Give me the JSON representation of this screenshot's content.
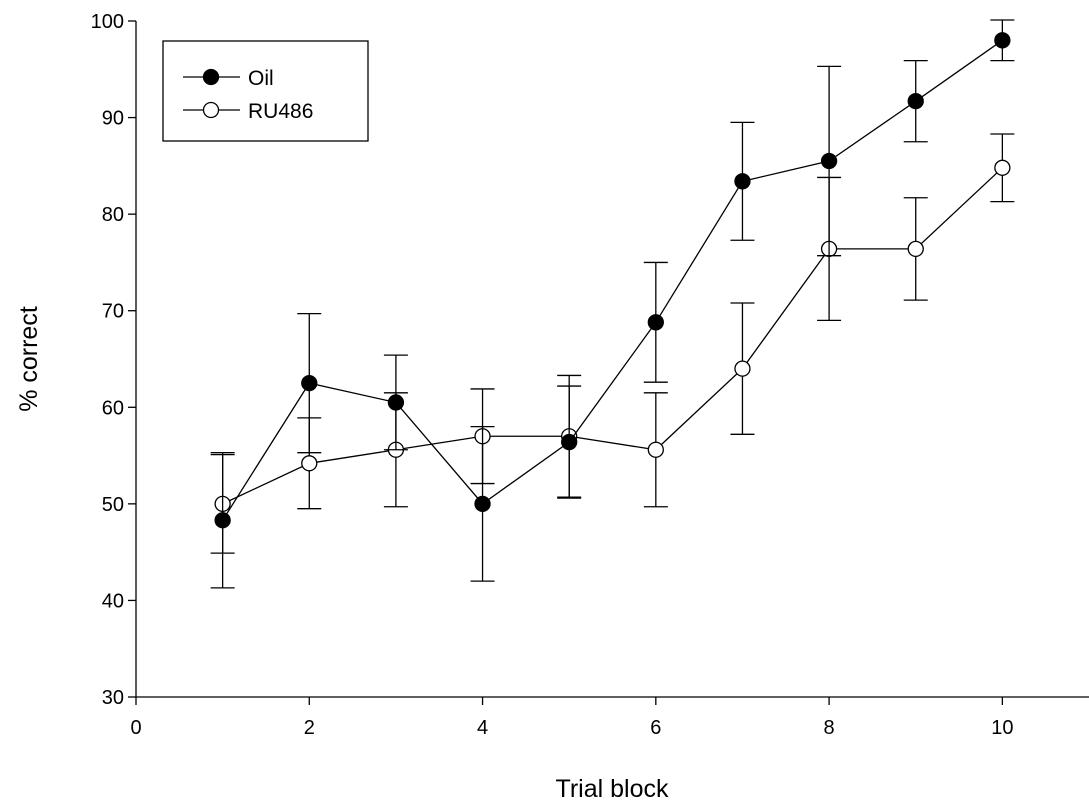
{
  "chart_data": {
    "type": "line",
    "title": "",
    "xlabel": "Trial block",
    "ylabel": "% correct",
    "xlim": [
      0,
      11
    ],
    "ylim": [
      30,
      100
    ],
    "xticks": [
      0,
      2,
      4,
      6,
      8,
      10
    ],
    "yticks": [
      30,
      40,
      50,
      60,
      70,
      80,
      90,
      100
    ],
    "grid": false,
    "legend_position": "top-left",
    "error_bars": true,
    "series": [
      {
        "name": "Oil",
        "marker": "filled-circle",
        "color": "#000000",
        "x": [
          1,
          2,
          3,
          4,
          5,
          6,
          7,
          8,
          9,
          10
        ],
        "y": [
          48.3,
          62.5,
          60.5,
          50.0,
          56.4,
          68.8,
          83.4,
          85.5,
          91.7,
          98.0
        ],
        "err": [
          7.0,
          7.2,
          4.9,
          8.0,
          5.8,
          6.2,
          6.1,
          9.8,
          4.2,
          2.1
        ]
      },
      {
        "name": "RU486",
        "marker": "open-circle",
        "color": "#000000",
        "x": [
          1,
          2,
          3,
          4,
          5,
          6,
          7,
          8,
          9,
          10
        ],
        "y": [
          50.0,
          54.2,
          55.6,
          57.0,
          57.0,
          55.6,
          64.0,
          76.4,
          76.4,
          84.8
        ],
        "err": [
          5.1,
          4.7,
          5.9,
          4.9,
          6.3,
          5.9,
          6.8,
          7.4,
          5.3,
          3.5
        ]
      }
    ]
  }
}
